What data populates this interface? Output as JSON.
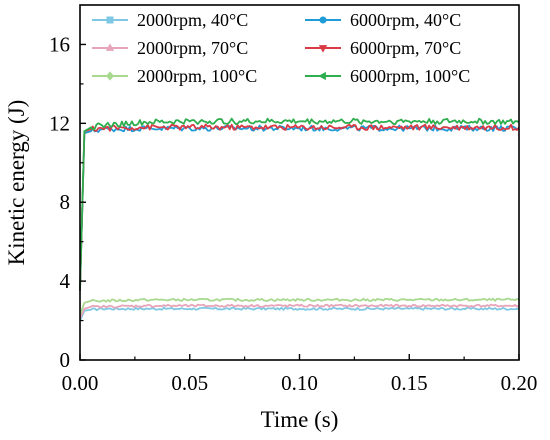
{
  "chart_data": {
    "type": "line",
    "title": "",
    "xlabel": "Time (s)",
    "ylabel": "Kinetic energy (J)",
    "xlim": [
      0,
      0.2
    ],
    "ylim": [
      0,
      18
    ],
    "x_ticks": [
      0.0,
      0.05,
      0.1,
      0.15,
      0.2
    ],
    "x_tick_labels": [
      "0.00",
      "0.05",
      "0.10",
      "0.15",
      "0.20"
    ],
    "y_ticks": [
      0,
      4,
      8,
      12,
      16
    ],
    "y_tick_labels": [
      "0",
      "4",
      "8",
      "12",
      "16"
    ],
    "grid": false,
    "legend_position": "top",
    "series": [
      {
        "name": "2000rpm, 40°C",
        "color": "#7ec8e3",
        "marker": "square",
        "x": [
          0.0,
          0.002,
          0.005,
          0.01,
          0.03,
          0.05,
          0.08,
          0.1,
          0.12,
          0.15,
          0.18,
          0.2
        ],
        "y": [
          2.0,
          2.5,
          2.55,
          2.6,
          2.6,
          2.6,
          2.6,
          2.6,
          2.6,
          2.6,
          2.6,
          2.6
        ]
      },
      {
        "name": "6000rpm, 40°C",
        "color": "#1f9bd7",
        "marker": "circle",
        "x": [
          0.0,
          0.002,
          0.005,
          0.01,
          0.03,
          0.05,
          0.08,
          0.1,
          0.12,
          0.15,
          0.18,
          0.2
        ],
        "y": [
          3.5,
          11.5,
          11.6,
          11.7,
          11.75,
          11.75,
          11.75,
          11.75,
          11.75,
          11.75,
          11.75,
          11.75
        ]
      },
      {
        "name": "2000rpm, 70°C",
        "color": "#e8a4b8",
        "marker": "triangle-up",
        "x": [
          0.0,
          0.002,
          0.005,
          0.01,
          0.03,
          0.05,
          0.08,
          0.1,
          0.12,
          0.15,
          0.18,
          0.2
        ],
        "y": [
          2.1,
          2.6,
          2.7,
          2.7,
          2.75,
          2.75,
          2.75,
          2.75,
          2.75,
          2.75,
          2.75,
          2.75
        ]
      },
      {
        "name": "6000rpm, 70°C",
        "color": "#d93a45",
        "marker": "triangle-down",
        "x": [
          0.0,
          0.002,
          0.005,
          0.01,
          0.03,
          0.05,
          0.08,
          0.1,
          0.12,
          0.15,
          0.18,
          0.2
        ],
        "y": [
          3.5,
          11.6,
          11.7,
          11.75,
          11.8,
          11.8,
          11.8,
          11.8,
          11.8,
          11.8,
          11.8,
          11.8
        ]
      },
      {
        "name": "2000rpm, 100°C",
        "color": "#a8d98f",
        "marker": "diamond",
        "x": [
          0.0,
          0.002,
          0.005,
          0.01,
          0.03,
          0.05,
          0.08,
          0.1,
          0.12,
          0.15,
          0.18,
          0.2
        ],
        "y": [
          2.3,
          2.9,
          3.0,
          3.0,
          3.05,
          3.05,
          3.05,
          3.05,
          3.05,
          3.05,
          3.05,
          3.05
        ]
      },
      {
        "name": "6000rpm, 100°C",
        "color": "#2eae4e",
        "marker": "triangle-left",
        "x": [
          0.0,
          0.002,
          0.005,
          0.01,
          0.03,
          0.05,
          0.08,
          0.1,
          0.12,
          0.15,
          0.18,
          0.2
        ],
        "y": [
          3.6,
          11.6,
          11.8,
          11.9,
          12.05,
          12.1,
          12.1,
          12.1,
          12.1,
          12.1,
          12.1,
          12.05
        ]
      }
    ]
  }
}
